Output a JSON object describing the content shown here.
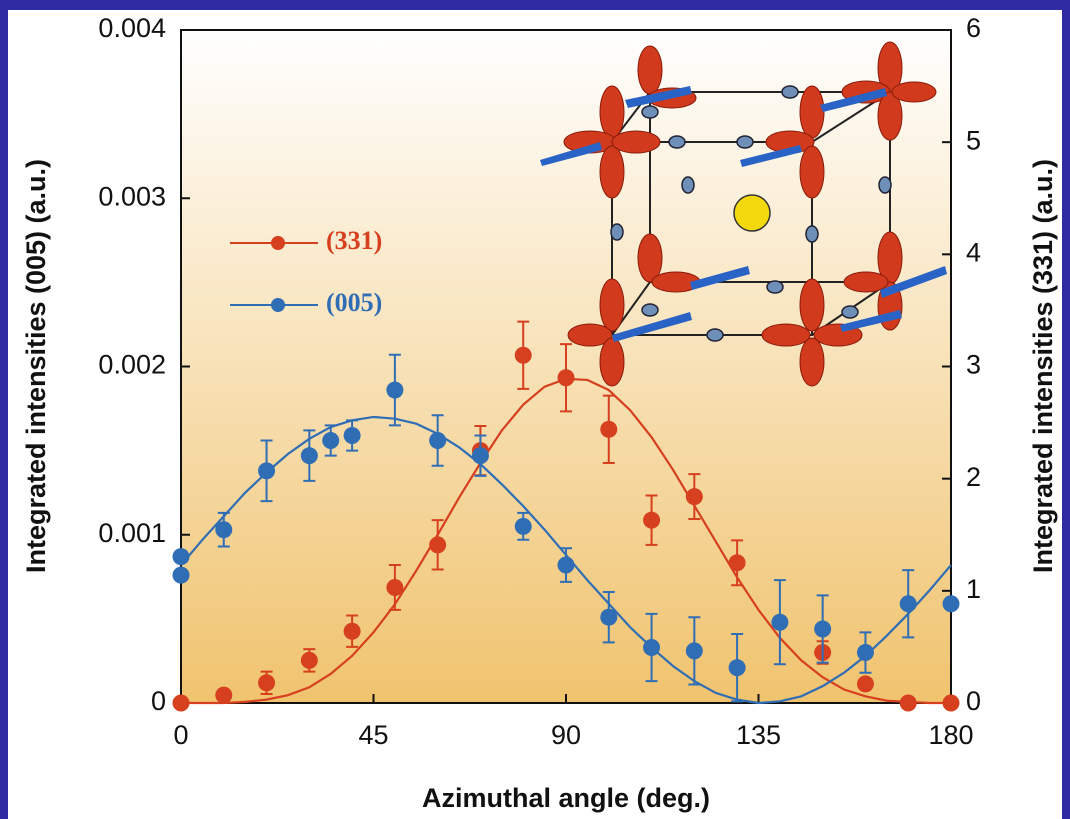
{
  "chart_data": {
    "type": "scatter",
    "xlabel": "Azimuthal angle (deg.)",
    "ylabel": "Integrated intensities (005) (a.u.)",
    "y2label": "Integrated intensities (331) (a.u.)",
    "xlim": [
      0,
      180
    ],
    "xticks": [
      0,
      45,
      90,
      135,
      180
    ],
    "ylim": [
      0,
      0.004
    ],
    "yticks": [
      0,
      0.001,
      0.002,
      0.003,
      0.004
    ],
    "y2lim": [
      0,
      6
    ],
    "y2ticks": [
      0,
      1,
      2,
      3,
      4,
      5,
      6
    ],
    "fit_x": [
      0,
      5,
      10,
      15,
      20,
      25,
      30,
      35,
      40,
      45,
      50,
      55,
      60,
      65,
      70,
      75,
      80,
      85,
      90,
      95,
      100,
      105,
      110,
      115,
      120,
      125,
      130,
      135,
      140,
      145,
      150,
      155,
      160,
      165,
      170,
      175,
      180
    ],
    "series": [
      {
        "name": "(331)",
        "color": "#d6401e",
        "axis": "y2",
        "x": [
          0,
          10,
          20,
          30,
          40,
          50,
          60,
          70,
          80,
          90,
          100,
          110,
          120,
          130,
          150,
          160,
          170,
          180
        ],
        "values": [
          0,
          0.07,
          0.18,
          0.38,
          0.64,
          1.03,
          1.41,
          2.25,
          3.1,
          2.9,
          2.44,
          1.63,
          1.84,
          1.25,
          0.45,
          0.17,
          0,
          0
        ],
        "errors": [
          null,
          null,
          0.1,
          0.1,
          0.14,
          0.2,
          0.22,
          0.22,
          0.3,
          0.3,
          0.3,
          0.22,
          0.2,
          0.2,
          0.1,
          null,
          null,
          null
        ],
        "fit": [
          0,
          0,
          0,
          0.01,
          0.03,
          0.07,
          0.14,
          0.26,
          0.42,
          0.63,
          0.88,
          1.18,
          1.5,
          1.83,
          2.14,
          2.43,
          2.66,
          2.82,
          2.89,
          2.88,
          2.79,
          2.61,
          2.37,
          2.08,
          1.76,
          1.44,
          1.12,
          0.83,
          0.58,
          0.38,
          0.23,
          0.12,
          0.06,
          0.02,
          0.01,
          0,
          0
        ]
      },
      {
        "name": "(005)",
        "color": "#2f6db5",
        "x": [
          0,
          0,
          10,
          20,
          30,
          35,
          40,
          50,
          60,
          70,
          80,
          90,
          100,
          110,
          120,
          130,
          140,
          150,
          160,
          170,
          180
        ],
        "values": [
          0.00076,
          0.00087,
          0.00103,
          0.00138,
          0.00147,
          0.00156,
          0.00159,
          0.00186,
          0.00156,
          0.00147,
          0.00105,
          0.00082,
          0.00051,
          0.00033,
          0.00031,
          0.00021,
          0.00048,
          0.00044,
          0.0003,
          0.00059,
          0.00059
        ],
        "errors": [
          null,
          null,
          0.0001,
          0.00018,
          0.00015,
          9e-05,
          9e-05,
          0.00021,
          0.00015,
          0.00012,
          8e-05,
          0.0001,
          0.00015,
          0.0002,
          0.0002,
          0.0002,
          0.00025,
          0.0002,
          0.00012,
          0.0002,
          null
        ],
        "fit": [
          0.00082,
          0.00097,
          0.00111,
          0.00125,
          0.00137,
          0.00148,
          0.00157,
          0.00164,
          0.00168,
          0.0017,
          0.00169,
          0.00166,
          0.0016,
          0.00152,
          0.00142,
          0.0013,
          0.00117,
          0.00103,
          0.00088,
          0.00073,
          0.00059,
          0.00045,
          0.00033,
          0.00022,
          0.00013,
          6e-05,
          2e-05,
          0,
          1e-05,
          4e-05,
          0.0001,
          0.00018,
          0.00028,
          0.0004,
          0.00053,
          0.00067,
          0.00082
        ]
      }
    ]
  }
}
